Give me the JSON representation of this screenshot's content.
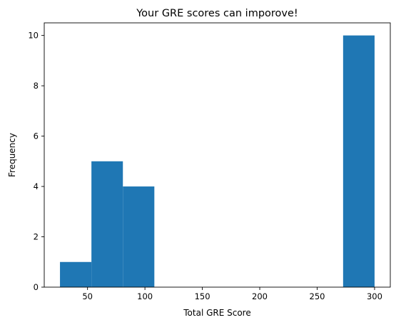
{
  "chart_data": {
    "type": "bar",
    "title": "Your GRE scores can imporove!",
    "xlabel": "Total GRE Score",
    "ylabel": "Frequency",
    "bins": [
      {
        "x0": 26.0,
        "x1": 53.4,
        "count": 1
      },
      {
        "x0": 53.4,
        "x1": 80.8,
        "count": 5
      },
      {
        "x0": 80.8,
        "x1": 108.2,
        "count": 4
      },
      {
        "x0": 108.2,
        "x1": 135.6,
        "count": 0
      },
      {
        "x0": 135.6,
        "x1": 163.0,
        "count": 0
      },
      {
        "x0": 163.0,
        "x1": 190.4,
        "count": 0
      },
      {
        "x0": 190.4,
        "x1": 217.8,
        "count": 0
      },
      {
        "x0": 217.8,
        "x1": 245.2,
        "count": 0
      },
      {
        "x0": 245.2,
        "x1": 272.6,
        "count": 0
      },
      {
        "x0": 272.6,
        "x1": 300.0,
        "count": 10
      }
    ],
    "xlim": [
      12.3,
      313.7
    ],
    "ylim": [
      0,
      10.5
    ],
    "xticks": [
      50,
      100,
      150,
      200,
      250,
      300
    ],
    "yticks": [
      0,
      2,
      4,
      6,
      8,
      10
    ],
    "bar_color": "#1f77b4",
    "grid": false,
    "legend": "none"
  }
}
